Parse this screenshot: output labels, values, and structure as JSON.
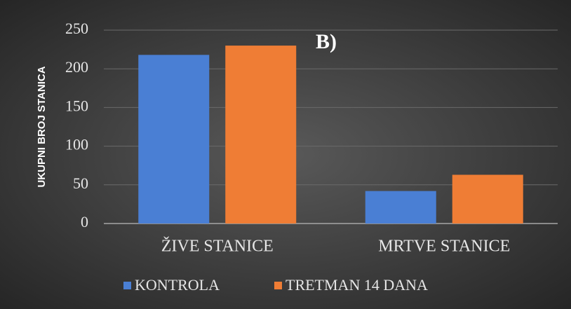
{
  "chart_data": {
    "type": "bar",
    "annotation": "B)",
    "y_label": "UKUPNI BROJ STANICA",
    "categories": [
      "ŽIVE STANICE",
      "MRTVE STANICE"
    ],
    "series": [
      {
        "name": "KONTROLA",
        "color": "#4a7fd4",
        "values": [
          218,
          42
        ]
      },
      {
        "name": "TRETMAN 14 DANA",
        "color": "#ef7d35",
        "values": [
          230,
          63
        ]
      }
    ],
    "ylim": [
      0,
      250
    ],
    "yticks": [
      0,
      50,
      100,
      150,
      200,
      250
    ],
    "grid": true,
    "legend": "bottom"
  }
}
